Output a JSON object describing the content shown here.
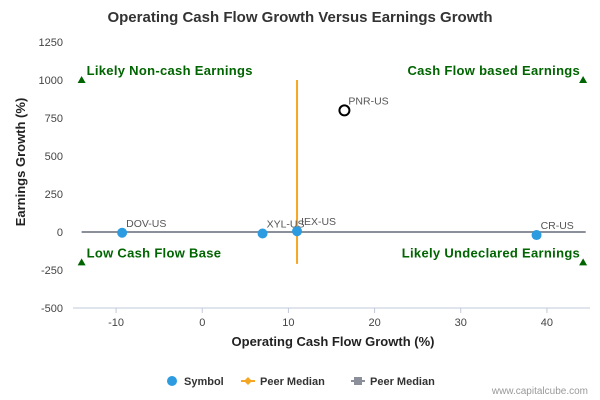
{
  "chart_data": {
    "type": "scatter",
    "title": "Operating Cash Flow Growth Versus Earnings Growth",
    "xlabel": "Operating Cash Flow Growth (%)",
    "ylabel": "Earnings Growth (%)",
    "xlim": [
      -15,
      45
    ],
    "ylim": [
      -500,
      1250
    ],
    "xticks": [
      -10,
      0,
      10,
      20,
      30,
      40
    ],
    "yticks": [
      -500,
      -250,
      0,
      250,
      500,
      750,
      1000,
      1250
    ],
    "x_tick_labels": [
      "-10",
      "0",
      "10",
      "20",
      "30",
      "40"
    ],
    "y_tick_labels": [
      "-500",
      "-250",
      "0",
      "250",
      "500",
      "750",
      "1000",
      "1250"
    ],
    "points": [
      {
        "label": "DOV-US",
        "x": -9.3,
        "y": -5,
        "style": "filled"
      },
      {
        "label": "XYL-US",
        "x": 7.0,
        "y": -10,
        "style": "filled"
      },
      {
        "label": "IEX-US",
        "x": 11.0,
        "y": 5,
        "style": "filled"
      },
      {
        "label": "PNR-US",
        "x": 16.5,
        "y": 800,
        "style": "open"
      },
      {
        "label": "CR-US",
        "x": 38.8,
        "y": -20,
        "style": "filled"
      }
    ],
    "peer_median_vertical": {
      "x": 11.0,
      "y_from": -210,
      "y_to": 1000
    },
    "peer_median_horizontal": {
      "y": 0,
      "x_from": -14,
      "x_to": 44.5
    },
    "quadrant_labels": [
      {
        "text": "Likely Non-cash Earnings",
        "position": "top-left"
      },
      {
        "text": "Cash Flow based Earnings",
        "position": "top-right"
      },
      {
        "text": "Low Cash Flow Base",
        "position": "bottom-left"
      },
      {
        "text": "Likely Undeclared Earnings",
        "position": "bottom-right"
      }
    ],
    "quadrant_markers": [
      {
        "x": -14,
        "y": 1000
      },
      {
        "x": 44.2,
        "y": 1000
      },
      {
        "x": -14,
        "y": -200
      },
      {
        "x": 44.2,
        "y": -200
      }
    ],
    "legend": [
      {
        "name": "Symbol",
        "color": "#2d9be0",
        "marker": "circle"
      },
      {
        "name": "Peer Median",
        "color": "#f5a623",
        "marker": "diamond"
      },
      {
        "name": "Peer Median",
        "color": "#8a8f99",
        "marker": "square"
      }
    ],
    "legend_position": "bottom-center",
    "grid": false,
    "colors": {
      "point_fill": "#2d9be0",
      "point_open_stroke": "#000000",
      "peer_vertical": "#f5a623",
      "peer_horizontal": "#8a8f99",
      "quadrant_text": "#006400",
      "axis": "#c0c8d8"
    }
  },
  "credit": "www.capitalcube.com"
}
